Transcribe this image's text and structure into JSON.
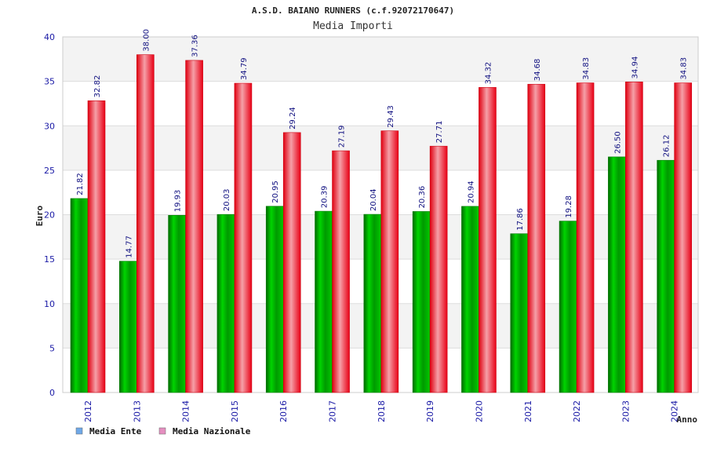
{
  "chart_data": {
    "type": "bar",
    "title": "A.S.D. BAIANO RUNNERS (c.f.92072170647)",
    "subtitle": "Media Importi",
    "xlabel": "Anno",
    "ylabel": "Euro",
    "ylim": [
      0,
      40
    ],
    "yticks": [
      0,
      5,
      10,
      15,
      20,
      25,
      30,
      35,
      40
    ],
    "grid": true,
    "legend_position": "bottom-left",
    "categories": [
      "2012",
      "2013",
      "2014",
      "2015",
      "2016",
      "2017",
      "2018",
      "2019",
      "2020",
      "2021",
      "2022",
      "2023",
      "2024"
    ],
    "series": [
      {
        "name": "Media Ente",
        "color": "#00bb00",
        "legend_color": "#6fa8e8",
        "values": [
          21.82,
          14.77,
          19.93,
          20.03,
          20.95,
          20.39,
          20.04,
          20.36,
          20.94,
          17.86,
          19.28,
          26.5,
          26.12
        ],
        "labels": [
          "21.82",
          "14.77",
          "19.93",
          "20.03",
          "20.95",
          "20.39",
          "20.04",
          "20.36",
          "20.94",
          "17.86",
          "19.28",
          "26.50",
          "26.12"
        ]
      },
      {
        "name": "Media Nazionale",
        "color": "#ee1122",
        "legend_color": "#e58fc0",
        "values": [
          32.82,
          38.0,
          37.36,
          34.79,
          29.24,
          27.19,
          29.43,
          27.71,
          34.32,
          34.68,
          34.83,
          34.94,
          34.83
        ],
        "labels": [
          "32.82",
          "38.00",
          "37.36",
          "34.79",
          "29.24",
          "27.19",
          "29.43",
          "27.71",
          "34.32",
          "34.68",
          "34.83",
          "34.94",
          "34.83"
        ]
      }
    ]
  }
}
